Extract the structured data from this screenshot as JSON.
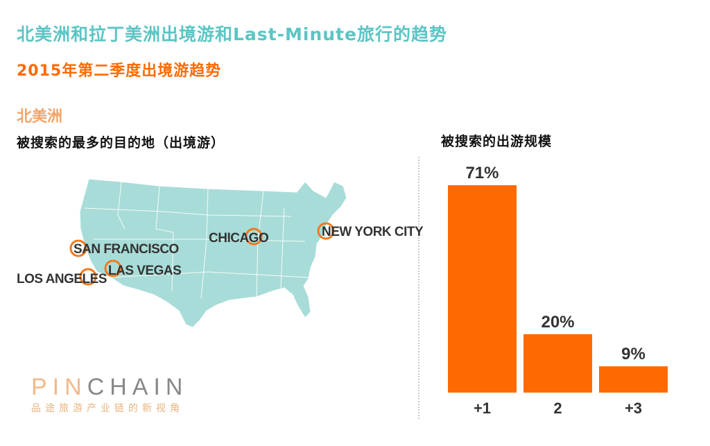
{
  "title": "北美洲和拉丁美洲出境游和Last-Minute旅行的趋势",
  "subtitle": "2015年第二季度出境游趋势",
  "region": "北美洲",
  "map": {
    "heading": "被搜索的最多的目的地（出境游）",
    "map_color": "#a8dcd8",
    "marker_color": "#f07a1e",
    "cities": [
      {
        "name": "SAN FRANCISCO"
      },
      {
        "name": "LOS ANGELES"
      },
      {
        "name": "LAS VEGAS"
      },
      {
        "name": "CHICAGO"
      },
      {
        "name": "NEW YORK CITY"
      }
    ]
  },
  "chart_data": {
    "type": "bar",
    "title": "被搜索的出游规模",
    "categories": [
      "+1",
      "2",
      "+3"
    ],
    "values": [
      71,
      20,
      9
    ],
    "value_labels": [
      "71%",
      "20%",
      "9%"
    ],
    "unit": "%",
    "ylim": [
      0,
      71
    ],
    "grid": false,
    "bar_color": "#ff6a00"
  },
  "logo": {
    "text_part1": "PIN",
    "text_part2": "CHAIN",
    "tagline": "品途旅游产业链的新视角"
  }
}
